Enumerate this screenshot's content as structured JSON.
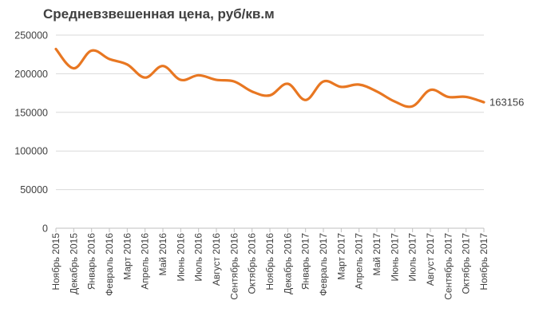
{
  "chart_data": {
    "type": "line",
    "title": "Средневзвешенная цена, руб/кв.м",
    "xlabel": "",
    "ylabel": "",
    "ylim": [
      0,
      250000
    ],
    "yticks": [
      0,
      50000,
      100000,
      150000,
      200000,
      250000
    ],
    "grid": true,
    "line_color": "#E87722",
    "categories": [
      "Ноябрь 2015",
      "Декабрь 2015",
      "Январь 2016",
      "Февраль 2016",
      "Март 2016",
      "Апрель 2016",
      "Май 2016",
      "Июнь 2016",
      "Июль 2016",
      "Август 2016",
      "Сентябрь 2016",
      "Октябрь 2016",
      "Ноябрь 2016",
      "Декабрь 2016",
      "Январь 2017",
      "Февраль 2017",
      "Март 2017",
      "Апрель 2017",
      "Май 2017",
      "Июнь 2017",
      "Июль 2017",
      "Август 2017",
      "Сентябрь 2017",
      "Октябрь 2017",
      "Ноябрь 2017"
    ],
    "series": [
      {
        "values": [
          232000,
          207000,
          230000,
          219000,
          212000,
          195000,
          210000,
          192000,
          198000,
          192000,
          190000,
          177000,
          172000,
          187000,
          166000,
          190000,
          183000,
          186000,
          177000,
          164000,
          158000,
          179000,
          170000,
          170000,
          163156
        ]
      }
    ],
    "end_label": "163156"
  }
}
